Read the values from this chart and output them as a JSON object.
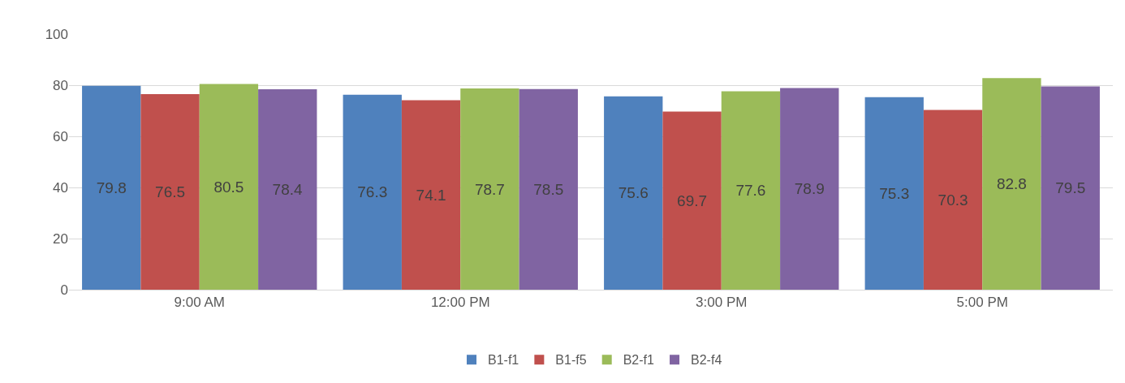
{
  "chart_data": {
    "type": "bar",
    "categories": [
      "9:00 AM",
      "12:00 PM",
      "3:00 PM",
      "5:00 PM"
    ],
    "series": [
      {
        "name": "B1-f1",
        "color": "#4f81bd",
        "values": [
          79.8,
          76.3,
          75.6,
          75.3
        ]
      },
      {
        "name": "B1-f5",
        "color": "#c0504d",
        "values": [
          76.5,
          74.1,
          69.7,
          70.3
        ]
      },
      {
        "name": "B2-f1",
        "color": "#9bbb59",
        "values": [
          80.5,
          78.7,
          77.6,
          82.8
        ]
      },
      {
        "name": "B2-f4",
        "color": "#8064a2",
        "values": [
          78.4,
          78.5,
          78.9,
          79.5
        ]
      }
    ],
    "ylim": [
      0,
      100
    ],
    "yticks": [
      0,
      20,
      40,
      60,
      80,
      100
    ],
    "grid": "y",
    "legend": "bottom",
    "data_labels": true
  }
}
